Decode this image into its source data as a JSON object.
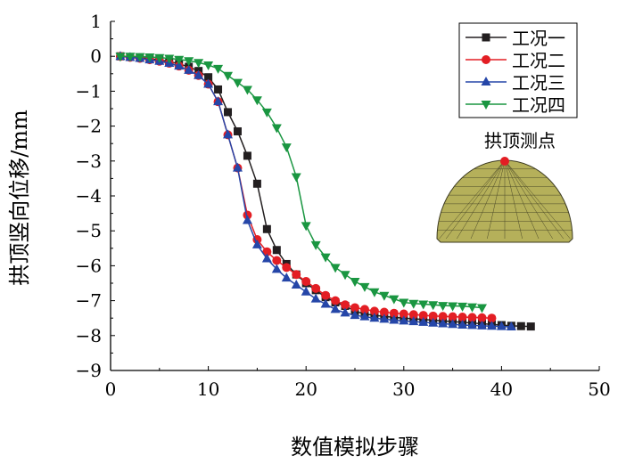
{
  "chart_data": {
    "type": "line",
    "title": "",
    "xlabel": "数值模拟步骤",
    "ylabel": "拱顶竖向位移/mm",
    "xlim": [
      0,
      50
    ],
    "ylim": [
      -9,
      1
    ],
    "xticks": [
      "0",
      "10",
      "20",
      "30",
      "40",
      "50"
    ],
    "yticks": [
      "1",
      "0",
      "−1",
      "−2",
      "−3",
      "−4",
      "−5",
      "−6",
      "−7",
      "−8",
      "−9"
    ],
    "legend_position": "top-right",
    "inset_label": "拱顶测点",
    "series": [
      {
        "name": "工况一",
        "color": "#231f20",
        "marker": "square",
        "x": [
          1,
          2,
          3,
          4,
          5,
          6,
          7,
          8,
          9,
          10,
          11,
          12,
          13,
          14,
          15,
          16,
          17,
          18,
          19,
          20,
          21,
          22,
          23,
          24,
          25,
          26,
          27,
          28,
          29,
          30,
          31,
          32,
          33,
          34,
          35,
          36,
          37,
          38,
          39,
          40,
          41,
          42,
          43
        ],
        "y": [
          0,
          -0.02,
          -0.04,
          -0.07,
          -0.1,
          -0.15,
          -0.22,
          -0.3,
          -0.42,
          -0.6,
          -0.95,
          -1.6,
          -2.15,
          -2.85,
          -3.65,
          -4.95,
          -5.55,
          -5.95,
          -6.25,
          -6.5,
          -6.7,
          -6.9,
          -7.05,
          -7.15,
          -7.3,
          -7.38,
          -7.42,
          -7.45,
          -7.48,
          -7.5,
          -7.52,
          -7.54,
          -7.56,
          -7.58,
          -7.6,
          -7.62,
          -7.64,
          -7.66,
          -7.68,
          -7.7,
          -7.72,
          -7.73,
          -7.74
        ]
      },
      {
        "name": "工况二",
        "color": "#e31e24",
        "marker": "circle",
        "x": [
          1,
          2,
          3,
          4,
          5,
          6,
          7,
          8,
          9,
          10,
          11,
          12,
          13,
          14,
          15,
          16,
          17,
          18,
          19,
          20,
          21,
          22,
          23,
          24,
          25,
          26,
          27,
          28,
          29,
          30,
          31,
          32,
          33,
          34,
          35,
          36,
          37,
          38,
          39
        ],
        "y": [
          0,
          -0.03,
          -0.06,
          -0.1,
          -0.14,
          -0.2,
          -0.28,
          -0.4,
          -0.55,
          -0.8,
          -1.3,
          -2.25,
          -3.2,
          -4.55,
          -5.25,
          -5.6,
          -5.85,
          -6.05,
          -6.25,
          -6.45,
          -6.65,
          -6.85,
          -7.0,
          -7.12,
          -7.2,
          -7.25,
          -7.3,
          -7.33,
          -7.36,
          -7.38,
          -7.4,
          -7.42,
          -7.44,
          -7.45,
          -7.46,
          -7.47,
          -7.48,
          -7.49,
          -7.5
        ]
      },
      {
        "name": "工况三",
        "color": "#2546a8",
        "marker": "triangle-up",
        "x": [
          1,
          2,
          3,
          4,
          5,
          6,
          7,
          8,
          9,
          10,
          11,
          12,
          13,
          14,
          15,
          16,
          17,
          18,
          19,
          20,
          21,
          22,
          23,
          24,
          25,
          26,
          27,
          28,
          29,
          30,
          31,
          32,
          33,
          34,
          35,
          36,
          37,
          38,
          39,
          40,
          41
        ],
        "y": [
          0,
          -0.03,
          -0.06,
          -0.1,
          -0.14,
          -0.2,
          -0.28,
          -0.4,
          -0.55,
          -0.8,
          -1.3,
          -2.25,
          -3.2,
          -4.7,
          -5.4,
          -5.8,
          -6.1,
          -6.35,
          -6.55,
          -6.75,
          -6.95,
          -7.1,
          -7.25,
          -7.35,
          -7.42,
          -7.46,
          -7.5,
          -7.53,
          -7.56,
          -7.58,
          -7.6,
          -7.62,
          -7.64,
          -7.66,
          -7.68,
          -7.7,
          -7.71,
          -7.72,
          -7.73,
          -7.74,
          -7.75
        ]
      },
      {
        "name": "工况四",
        "color": "#1a9641",
        "marker": "triangle-down",
        "x": [
          1,
          2,
          3,
          4,
          5,
          6,
          7,
          8,
          9,
          10,
          11,
          12,
          13,
          14,
          15,
          16,
          17,
          18,
          19,
          20,
          21,
          22,
          23,
          24,
          25,
          26,
          27,
          28,
          29,
          30,
          31,
          32,
          33,
          34,
          35,
          36,
          37,
          38
        ],
        "y": [
          0,
          0,
          -0.01,
          -0.02,
          -0.04,
          -0.06,
          -0.09,
          -0.13,
          -0.18,
          -0.25,
          -0.35,
          -0.55,
          -0.75,
          -0.95,
          -1.25,
          -1.6,
          -2.05,
          -2.6,
          -3.45,
          -4.85,
          -5.4,
          -5.75,
          -6.05,
          -6.25,
          -6.45,
          -6.6,
          -6.75,
          -6.85,
          -6.95,
          -7.05,
          -7.08,
          -7.1,
          -7.12,
          -7.14,
          -7.15,
          -7.16,
          -7.18,
          -7.2
        ]
      }
    ]
  }
}
